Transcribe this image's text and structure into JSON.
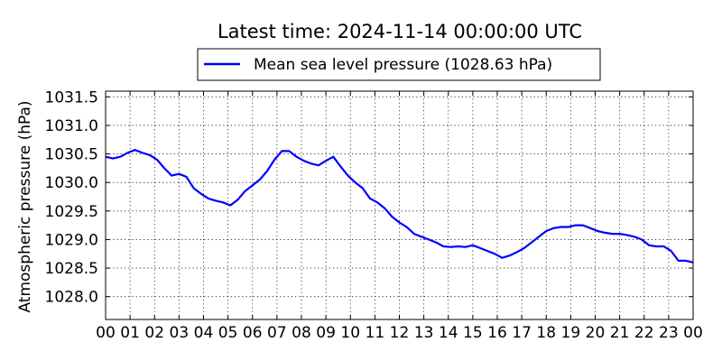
{
  "chart_data": {
    "type": "line",
    "title": "Latest time: 2024-11-14 00:00:00 UTC",
    "ylabel": "Atmospheric pressure (hPa)",
    "xlabel": "",
    "ylim": [
      1027.6,
      1031.6
    ],
    "xlim": [
      0,
      24
    ],
    "yticks": [
      1028.0,
      1028.5,
      1029.0,
      1029.5,
      1030.0,
      1030.5,
      1031.0,
      1031.5
    ],
    "ytick_labels": [
      "1028.0",
      "1028.5",
      "1029.0",
      "1029.5",
      "1030.0",
      "1030.5",
      "1031.0",
      "1031.5"
    ],
    "xticks": [
      0,
      1,
      2,
      3,
      4,
      5,
      6,
      7,
      8,
      9,
      10,
      11,
      12,
      13,
      14,
      15,
      16,
      17,
      18,
      19,
      20,
      21,
      22,
      23,
      24
    ],
    "xtick_labels": [
      "00",
      "01",
      "02",
      "03",
      "04",
      "05",
      "06",
      "07",
      "08",
      "09",
      "10",
      "11",
      "12",
      "13",
      "14",
      "15",
      "16",
      "17",
      "18",
      "19",
      "20",
      "21",
      "22",
      "23",
      "00"
    ],
    "grid": true,
    "legend_position": "top-center",
    "series": [
      {
        "name": "Mean sea level pressure (1028.63 hPa)",
        "color": "#0000ff",
        "x": [
          0,
          0.3,
          0.6,
          0.9,
          1.2,
          1.5,
          1.8,
          2.1,
          2.4,
          2.7,
          3.0,
          3.3,
          3.6,
          3.9,
          4.2,
          4.5,
          4.8,
          5.1,
          5.4,
          5.7,
          6.0,
          6.3,
          6.6,
          6.9,
          7.2,
          7.5,
          7.8,
          8.1,
          8.4,
          8.7,
          9.0,
          9.3,
          9.6,
          9.9,
          10.2,
          10.5,
          10.8,
          11.1,
          11.4,
          11.7,
          12.0,
          12.3,
          12.6,
          12.9,
          13.2,
          13.5,
          13.8,
          14.1,
          14.4,
          14.7,
          15.0,
          15.3,
          15.6,
          15.9,
          16.2,
          16.5,
          16.8,
          17.1,
          17.4,
          17.7,
          18.0,
          18.3,
          18.6,
          18.9,
          19.2,
          19.5,
          19.8,
          20.1,
          20.4,
          20.7,
          21.0,
          21.3,
          21.6,
          21.9,
          22.2,
          22.5,
          22.8,
          23.1,
          23.4,
          23.7,
          24.0
        ],
        "values": [
          1030.45,
          1030.42,
          1030.45,
          1030.52,
          1030.57,
          1030.52,
          1030.48,
          1030.4,
          1030.25,
          1030.12,
          1030.15,
          1030.1,
          1029.9,
          1029.8,
          1029.72,
          1029.68,
          1029.65,
          1029.6,
          1029.7,
          1029.85,
          1029.95,
          1030.05,
          1030.2,
          1030.4,
          1030.55,
          1030.55,
          1030.45,
          1030.38,
          1030.33,
          1030.3,
          1030.38,
          1030.45,
          1030.28,
          1030.12,
          1030.0,
          1029.9,
          1029.72,
          1029.65,
          1029.55,
          1029.4,
          1029.3,
          1029.22,
          1029.1,
          1029.05,
          1029.0,
          1028.95,
          1028.88,
          1028.87,
          1028.88,
          1028.87,
          1028.9,
          1028.85,
          1028.8,
          1028.75,
          1028.68,
          1028.72,
          1028.78,
          1028.85,
          1028.95,
          1029.05,
          1029.15,
          1029.2,
          1029.22,
          1029.22,
          1029.25,
          1029.25,
          1029.2,
          1029.15,
          1029.12,
          1029.1,
          1029.1,
          1029.08,
          1029.05,
          1029.0,
          1028.9,
          1028.88,
          1028.88,
          1028.8,
          1028.63,
          1028.63,
          1028.6
        ]
      }
    ]
  }
}
